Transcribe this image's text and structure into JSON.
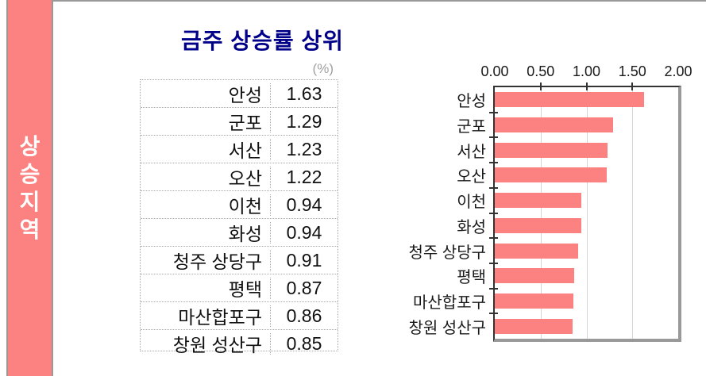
{
  "sidebar": {
    "label": "상승지역",
    "bg_color": "#FC8181",
    "border_color": "#999999",
    "text_color": "#ffffff"
  },
  "header": {
    "title": "금주 상승률 상위",
    "title_color": "#000088",
    "unit_label": "(%)"
  },
  "table": {
    "rows": [
      {
        "region": "안성",
        "value": "1.63"
      },
      {
        "region": "군포",
        "value": "1.29"
      },
      {
        "region": "서산",
        "value": "1.23"
      },
      {
        "region": "오산",
        "value": "1.22"
      },
      {
        "region": "이천",
        "value": "0.94"
      },
      {
        "region": "화성",
        "value": "0.94"
      },
      {
        "region": "청주 상당구",
        "value": "0.91"
      },
      {
        "region": "평택",
        "value": "0.87"
      },
      {
        "region": "마산합포구",
        "value": "0.86"
      },
      {
        "region": "창원 성산구",
        "value": "0.85"
      }
    ]
  },
  "chart_data": {
    "type": "bar",
    "orientation": "horizontal",
    "title": "금주 상승률 상위",
    "xlabel": "(%)",
    "categories": [
      "안성",
      "군포",
      "서산",
      "오산",
      "이천",
      "화성",
      "청주 상당구",
      "평택",
      "마산합포구",
      "창원 성산구"
    ],
    "values": [
      1.63,
      1.29,
      1.23,
      1.22,
      0.94,
      0.94,
      0.91,
      0.87,
      0.86,
      0.85
    ],
    "xlim": [
      0,
      2
    ],
    "xtick_labels": [
      "0.00",
      "0.50",
      "1.00",
      "1.50",
      "2.00"
    ],
    "grid": true,
    "legend": false,
    "bar_color": "#FC8181",
    "gridline_color": "#d4d4d4",
    "tick_color": "#333333",
    "axis_shadow_color": "#999999"
  }
}
